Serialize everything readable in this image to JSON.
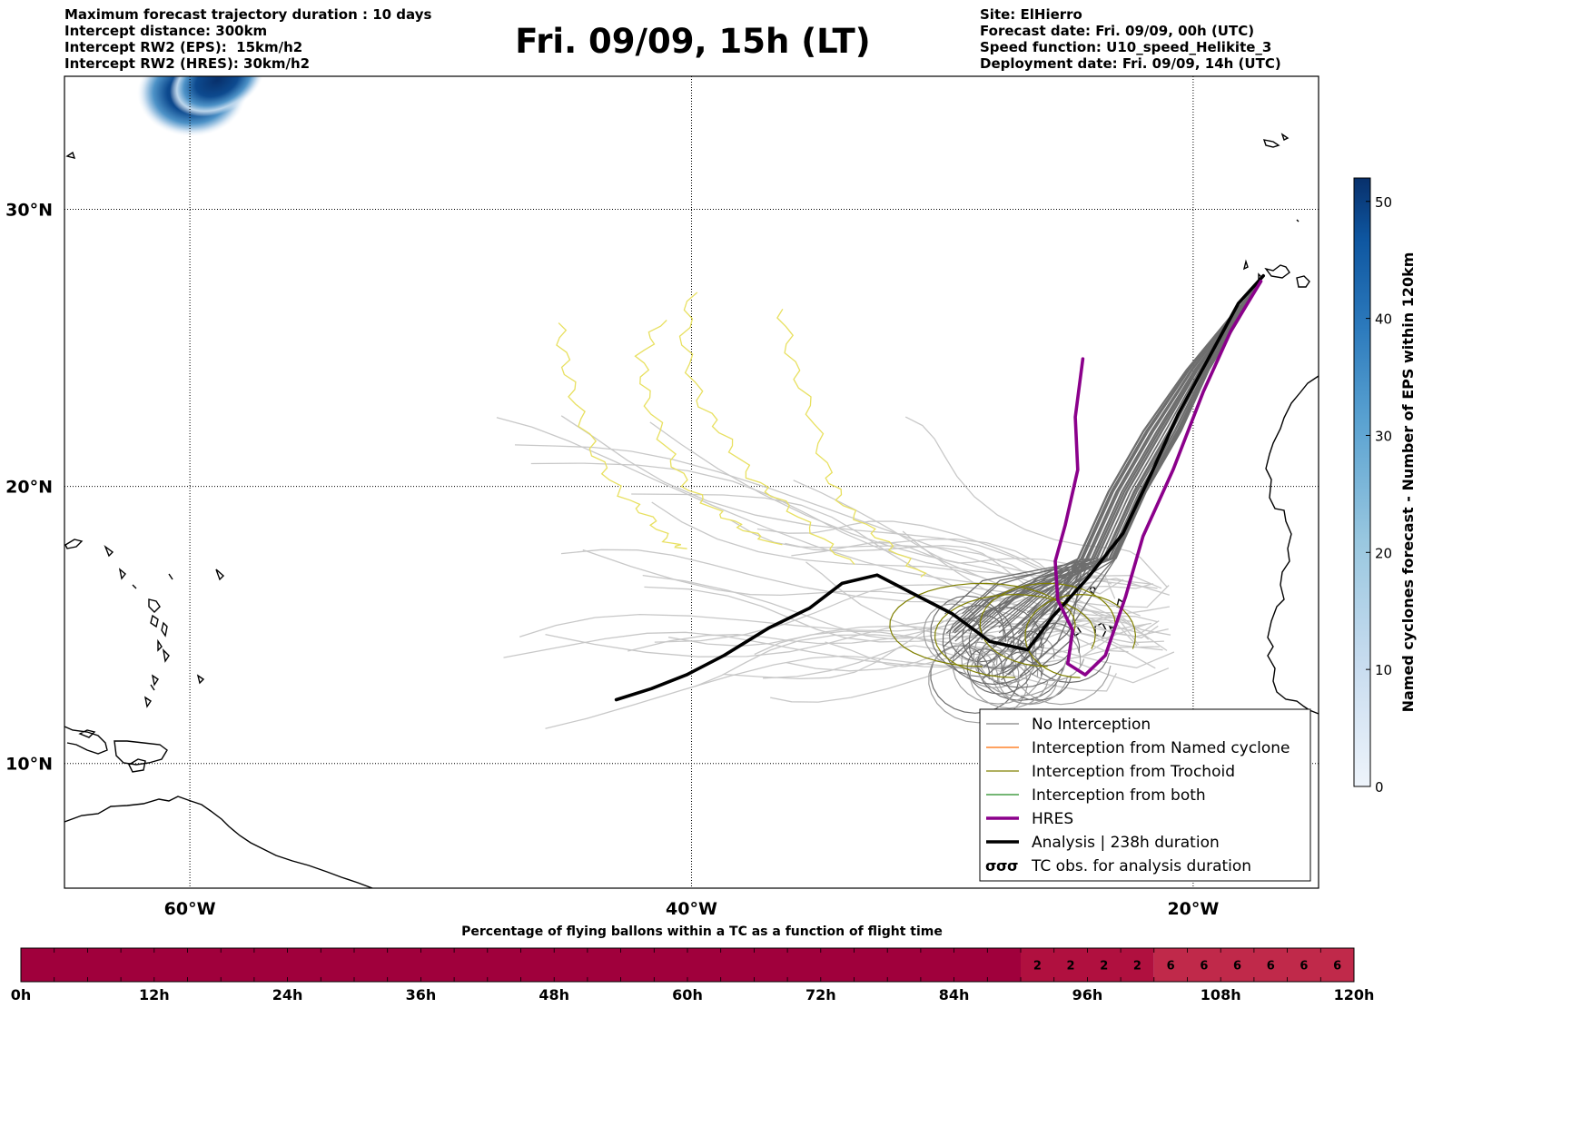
{
  "header": {
    "title": "Fri. 09/09, 15h (LT)",
    "left_lines": [
      "Maximum forecast trajectory duration : 10 days",
      "Intercept distance: 300km",
      "Intercept RW2 (EPS):  15km/h2",
      "Intercept RW2 (HRES): 30km/h2"
    ],
    "right_lines": [
      "Site: ElHierro",
      "Forecast date: Fri. 09/09, 00h (UTC)",
      "Speed function: U10_speed_Helikite_3",
      "Deployment date: Fri. 09/09, 14h (UTC)"
    ]
  },
  "map": {
    "lat_ticks": [
      {
        "value": 30,
        "label": "30°N"
      },
      {
        "value": 20,
        "label": "20°N"
      },
      {
        "value": 10,
        "label": "10°N"
      }
    ],
    "lon_ticks": [
      {
        "value": -60,
        "label": "60°W"
      },
      {
        "value": -40,
        "label": "40°W"
      },
      {
        "value": -20,
        "label": "20°W"
      }
    ],
    "lon_range": [
      -65,
      -15
    ],
    "lat_range": [
      5.5,
      34.8
    ],
    "legend": {
      "placement": "lower-right",
      "entries": [
        {
          "label": "No Interception",
          "color": "#808080",
          "style": "thin-line"
        },
        {
          "label": "Interception from Named cyclone",
          "color": "#ff6a00",
          "style": "thin-line"
        },
        {
          "label": "Interception from Trochoid",
          "color": "#808000",
          "style": "thin-line"
        },
        {
          "label": "Interception from both",
          "color": "#228b22",
          "style": "thin-line"
        },
        {
          "label": "HRES",
          "color": "#8b008b",
          "style": "thick-line"
        },
        {
          "label": "Analysis | 238h duration",
          "color": "#000000",
          "style": "thick-line"
        },
        {
          "label": "TC obs. for analysis duration",
          "color": "#000000",
          "style": "tc-symbol"
        }
      ]
    }
  },
  "colorbar": {
    "label": "Named cyclones forecast - Number of EPS within 120km",
    "ticks": [
      0,
      10,
      20,
      30,
      40,
      50
    ],
    "range": [
      0,
      52
    ],
    "colors": [
      "#eef4fb",
      "#c8dcef",
      "#9ac8e0",
      "#5aa2d1",
      "#2d7bbd",
      "#0e56a0",
      "#08306b"
    ]
  },
  "flight_bar": {
    "title": "Percentage of flying ballons within a TC as a function of flight time",
    "tick_labels": [
      "0h",
      "12h",
      "24h",
      "36h",
      "48h",
      "60h",
      "72h",
      "84h",
      "96h",
      "108h",
      "120h"
    ],
    "hours_per_cell": 3,
    "cells": [
      {
        "from_h": 0,
        "to_h": 90,
        "value": 0,
        "label": ""
      },
      {
        "from_h": 90,
        "to_h": 102,
        "value": 2,
        "label": "2"
      },
      {
        "from_h": 102,
        "to_h": 120,
        "value": 6,
        "label": "6"
      }
    ],
    "colors": {
      "0": "#a0003c",
      "2": "#b0103f",
      "6": "#c0294a"
    }
  },
  "chart_data": {
    "type": "line",
    "title": "Fri. 09/09, 15h (LT)",
    "xlabel": "",
    "ylabel": "",
    "series": [
      {
        "name": "Analysis | 238h duration",
        "color": "#000000",
        "lon": [
          -17.2,
          -18.2,
          -19.4,
          -20.6,
          -21.7,
          -22.8,
          -24.2,
          -25.6,
          -26.6,
          -28.1,
          -29.6,
          -31.1,
          -32.6,
          -34.0,
          -35.3,
          -36.9,
          -38.7,
          -40.2,
          -41.6,
          -43.0
        ],
        "lat": [
          27.6,
          26.6,
          24.6,
          22.6,
          20.4,
          18.3,
          16.7,
          15.3,
          14.1,
          14.4,
          15.4,
          16.1,
          16.8,
          16.5,
          15.6,
          14.9,
          13.9,
          13.2,
          12.7,
          12.3
        ]
      },
      {
        "name": "HRES",
        "color": "#8b008b",
        "lon": [
          -17.3,
          -18.5,
          -19.6,
          -20.8,
          -22.0,
          -22.7,
          -23.5,
          -24.3,
          -25.0,
          -24.8,
          -25.4,
          -25.5,
          -25.1,
          -24.6,
          -24.7,
          -24.4
        ],
        "lat": [
          27.4,
          25.6,
          23.4,
          20.6,
          18.2,
          16.0,
          13.9,
          13.2,
          13.6,
          14.8,
          15.9,
          17.3,
          18.6,
          20.6,
          22.5,
          24.6
        ]
      }
    ],
    "ensemble_no_interception": {
      "name": "No Interception",
      "color_near": "#6e6e6e",
      "color_far": "#c8c8c8"
    },
    "ensemble_trochoid": {
      "name": "Interception from Trochoid",
      "color": "#808000"
    },
    "yellow_tracks": [
      {
        "lon": [
          -45.3,
          -45.0,
          -44.5,
          -43.8,
          -42.9,
          -41.7,
          -40.9,
          -40.2
        ],
        "lat": [
          25.9,
          24.3,
          22.7,
          21.1,
          19.8,
          18.9,
          18.0,
          17.7
        ]
      },
      {
        "lon": [
          -41.2,
          -42.0,
          -41.8,
          -41.0,
          -40.2,
          -39.0,
          -37.8,
          -36.4
        ],
        "lat": [
          26.0,
          24.7,
          23.2,
          21.4,
          20.0,
          19.1,
          18.4,
          17.8
        ]
      },
      {
        "lon": [
          -40.0,
          -40.3,
          -39.7,
          -38.6,
          -37.6,
          -36.2,
          -34.8,
          -33.4
        ],
        "lat": [
          27.0,
          25.1,
          23.1,
          21.7,
          20.3,
          19.3,
          18.1,
          17.0
        ]
      },
      {
        "lon": [
          -36.4,
          -36.0,
          -35.2,
          -34.6,
          -33.9,
          -32.7,
          -31.5,
          -30.6
        ],
        "lat": [
          26.4,
          24.5,
          22.6,
          20.5,
          19.3,
          18.3,
          17.4,
          16.6
        ]
      }
    ],
    "cyclone_density": {
      "center_lon": -60,
      "center_lat": 34.2
    }
  }
}
